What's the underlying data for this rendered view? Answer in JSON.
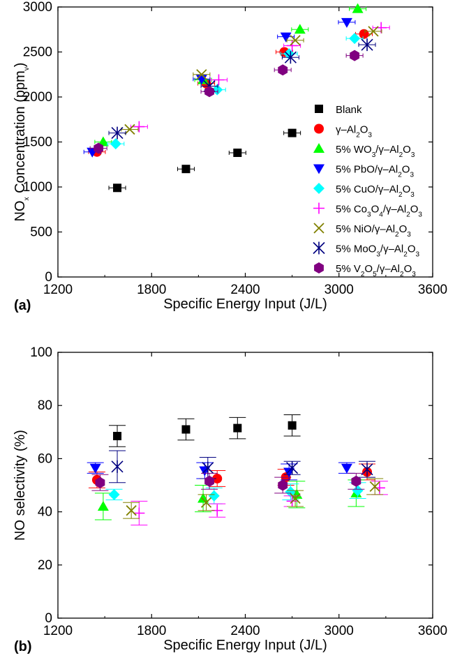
{
  "chart_data": [
    {
      "panel_label": "(a)",
      "type": "scatter",
      "xlabel": "Specific Energy Input (J/L)",
      "ylabel": {
        "main": "NO",
        "sub": "x",
        "rest": " Concentration (ppm",
        "sub2": "v",
        "end": ")"
      },
      "xlim": [
        1200,
        3600
      ],
      "ylim": [
        0,
        3000
      ],
      "xticks": [
        "1200",
        "1800",
        "2400",
        "3000",
        "3600"
      ],
      "yticks": [
        "0",
        "500",
        "1000",
        "1500",
        "2000",
        "2500",
        "3000"
      ],
      "legend_position": "right",
      "series": [
        {
          "name": "Blank",
          "marker": "square",
          "color": "#000000",
          "points": [
            [
              1580,
              990
            ],
            [
              2020,
              1200
            ],
            [
              2350,
              1380
            ],
            [
              2700,
              1600
            ]
          ]
        },
        {
          "name": [
            [
              "γ–Al",
              ""
            ],
            [
              "2",
              "sub"
            ],
            [
              "O",
              ""
            ],
            [
              "3",
              "sub"
            ]
          ],
          "marker": "circle",
          "color": "#ff0000",
          "points": [
            [
              1450,
              1390
            ],
            [
              2150,
              2150
            ],
            [
              2650,
              2500
            ],
            [
              3160,
              2700
            ]
          ]
        },
        {
          "name": [
            [
              "5% WO",
              ""
            ],
            [
              "3",
              "sub"
            ],
            [
              "/γ–Al",
              ""
            ],
            [
              "2",
              "sub"
            ],
            [
              "O",
              ""
            ],
            [
              "3",
              "sub"
            ]
          ],
          "marker": "triangle-up",
          "color": "#00ff00",
          "points": [
            [
              1490,
              1500
            ],
            [
              2130,
              2190
            ],
            [
              2750,
              2750
            ],
            [
              3120,
              2980
            ]
          ]
        },
        {
          "name": [
            [
              "5% PbO/γ–Al",
              ""
            ],
            [
              "2",
              "sub"
            ],
            [
              "O",
              ""
            ],
            [
              "3",
              "sub"
            ]
          ],
          "marker": "triangle-down",
          "color": "#0000ff",
          "points": [
            [
              1420,
              1390
            ],
            [
              2120,
              2200
            ],
            [
              2660,
              2670
            ],
            [
              3050,
              2830
            ]
          ]
        },
        {
          "name": [
            [
              "5% CuO/γ–Al",
              ""
            ],
            [
              "2",
              "sub"
            ],
            [
              "O",
              ""
            ],
            [
              "3",
              "sub"
            ]
          ],
          "marker": "diamond",
          "color": "#00ffff",
          "points": [
            [
              1570,
              1480
            ],
            [
              2220,
              2080
            ],
            [
              2680,
              2480
            ],
            [
              3100,
              2650
            ]
          ]
        },
        {
          "name": [
            [
              "5% Co",
              ""
            ],
            [
              "3",
              "sub"
            ],
            [
              "O",
              ""
            ],
            [
              "4",
              "sub"
            ],
            [
              "/γ–Al",
              ""
            ],
            [
              "2",
              "sub"
            ],
            [
              "O",
              ""
            ],
            [
              "3",
              "sub"
            ]
          ],
          "marker": "plus",
          "color": "#ff00ff",
          "points": [
            [
              1720,
              1670
            ],
            [
              2230,
              2190
            ],
            [
              2700,
              2570
            ],
            [
              3270,
              2770
            ]
          ]
        },
        {
          "name": [
            [
              "5% NiO/γ–Al",
              ""
            ],
            [
              "2",
              "sub"
            ],
            [
              "O",
              ""
            ],
            [
              "3",
              "sub"
            ]
          ],
          "marker": "x",
          "color": "#808000",
          "points": [
            [
              1660,
              1640
            ],
            [
              2120,
              2250
            ],
            [
              2720,
              2630
            ],
            [
              3220,
              2730
            ]
          ]
        },
        {
          "name": [
            [
              "5% MoO",
              ""
            ],
            [
              "3",
              "sub"
            ],
            [
              "/γ–Al",
              ""
            ],
            [
              "2",
              "sub"
            ],
            [
              "O",
              ""
            ],
            [
              "3",
              "sub"
            ]
          ],
          "marker": "asterisk",
          "color": "#000080",
          "points": [
            [
              1580,
              1600
            ],
            [
              2170,
              2120
            ],
            [
              2690,
              2440
            ],
            [
              3180,
              2580
            ]
          ]
        },
        {
          "name": [
            [
              "5% V",
              ""
            ],
            [
              "2",
              "sub"
            ],
            [
              "O",
              ""
            ],
            [
              "5",
              "sub"
            ],
            [
              "/γ–Al",
              ""
            ],
            [
              "2",
              "sub"
            ],
            [
              "O",
              ""
            ],
            [
              "3",
              "sub"
            ]
          ],
          "marker": "hexagon",
          "color": "#800080",
          "points": [
            [
              1460,
              1430
            ],
            [
              2170,
              2060
            ],
            [
              2640,
              2300
            ],
            [
              3100,
              2460
            ]
          ]
        }
      ]
    },
    {
      "panel_label": "(b)",
      "type": "scatter",
      "xlabel": "Specific Energy Input (J/L)",
      "ylabel": "NO selectivity (%)",
      "xlim": [
        1200,
        3600
      ],
      "ylim": [
        0,
        100
      ],
      "xticks": [
        "1200",
        "1800",
        "2400",
        "3000",
        "3600"
      ],
      "yticks": [
        "0",
        "20",
        "40",
        "60",
        "80",
        "100"
      ],
      "series": [
        {
          "name": "Blank",
          "marker": "square",
          "color": "#000000",
          "points": [
            [
              1580,
              68.5,
              4
            ],
            [
              2020,
              71,
              4
            ],
            [
              2350,
              71.5,
              4
            ],
            [
              2700,
              72.5,
              4
            ]
          ]
        },
        {
          "name": "γ–Al2O3",
          "marker": "circle",
          "color": "#ff0000",
          "points": [
            [
              1450,
              52,
              3
            ],
            [
              2220,
              52.5,
              3
            ],
            [
              2660,
              53,
              3
            ],
            [
              3180,
              55,
              3
            ]
          ]
        },
        {
          "name": "5% WO3/γ–Al2O3",
          "marker": "triangle-up",
          "color": "#00ff00",
          "points": [
            [
              1490,
              42,
              5
            ],
            [
              2130,
              45,
              5
            ],
            [
              2730,
              46.5,
              5
            ],
            [
              3110,
              47,
              5
            ]
          ]
        },
        {
          "name": "5% PbO/γ–Al2O3",
          "marker": "triangle-down",
          "color": "#0000ff",
          "points": [
            [
              1440,
              56.5,
              2
            ],
            [
              2140,
              55.5,
              3
            ],
            [
              2680,
              55,
              3
            ],
            [
              3050,
              56.5,
              2
            ]
          ]
        },
        {
          "name": "5% CuO/γ–Al2O3",
          "marker": "diamond",
          "color": "#00ffff",
          "points": [
            [
              1560,
              46.5,
              2
            ],
            [
              2200,
              46,
              3
            ],
            [
              2690,
              47.5,
              3
            ],
            [
              3120,
              48,
              3
            ]
          ]
        },
        {
          "name": "5% Co3O4/γ–Al2O3",
          "marker": "plus",
          "color": "#ff00ff",
          "points": [
            [
              1720,
              39.5,
              4.5
            ],
            [
              2220,
              40.5,
              2.5
            ],
            [
              2700,
              44,
              2
            ],
            [
              3260,
              49,
              2.5
            ]
          ]
        },
        {
          "name": "5% NiO/γ–Al2O3",
          "marker": "x",
          "color": "#808000",
          "points": [
            [
              1670,
              40.5,
              3
            ],
            [
              2150,
              43.5,
              3
            ],
            [
              2720,
              45,
              3
            ],
            [
              3230,
              49.5,
              3
            ]
          ]
        },
        {
          "name": "5% MoO3/γ–Al2O3",
          "marker": "asterisk",
          "color": "#000080",
          "points": [
            [
              1580,
              57,
              6
            ],
            [
              2160,
              56.5,
              4
            ],
            [
              2700,
              56.5,
              2.5
            ],
            [
              3180,
              56,
              3
            ]
          ]
        },
        {
          "name": "5% V2O5/γ–Al2O3",
          "marker": "hexagon",
          "color": "#800080",
          "points": [
            [
              1470,
              51,
              3
            ],
            [
              2170,
              51.5,
              3
            ],
            [
              2640,
              50,
              3
            ],
            [
              3110,
              51.5,
              3
            ]
          ]
        }
      ]
    }
  ]
}
